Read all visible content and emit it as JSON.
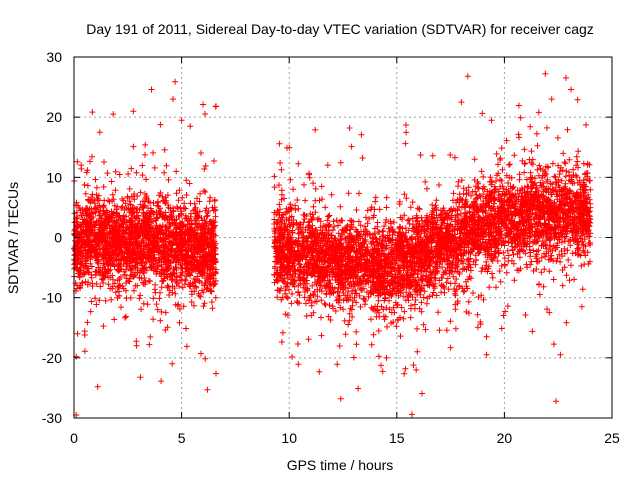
{
  "chart_data": {
    "type": "scatter",
    "title": "Day 191 of 2011, Sidereal Day-to-day VTEC variation (SDTVAR) for receiver cagz",
    "xlabel": "GPS time / hours",
    "ylabel": "SDTVAR / TECUs",
    "xlim": [
      0,
      25
    ],
    "ylim": [
      -30,
      30
    ],
    "xticks": [
      0,
      5,
      10,
      15,
      20,
      25
    ],
    "xtick_labels": [
      "0",
      "5",
      "10",
      "15",
      "20",
      "25"
    ],
    "yticks": [
      -30,
      -20,
      -10,
      0,
      10,
      20,
      30
    ],
    "ytick_labels": [
      "-30",
      "-20",
      "-10",
      "0",
      "10",
      "20",
      "30"
    ],
    "grid": true,
    "marker": "plus",
    "color": "#ff0000",
    "data_gap_hours": [
      6.6,
      9.3
    ],
    "series": [
      {
        "name": "SDTVAR",
        "segments": [
          {
            "x_range": [
              0.0,
              6.6
            ],
            "trend": [
              [
                0,
                -1
              ],
              [
                1,
                0
              ],
              [
                2,
                -1
              ],
              [
                3,
                0
              ],
              [
                4,
                -1
              ],
              [
                5,
                -1
              ],
              [
                6,
                -2
              ],
              [
                6.6,
                -2
              ]
            ],
            "spread": 3.5,
            "points": 2300
          },
          {
            "x_range": [
              9.3,
              24.0
            ],
            "trend": [
              [
                9.3,
                -2
              ],
              [
                11,
                -3
              ],
              [
                13,
                -4
              ],
              [
                14.5,
                -5
              ],
              [
                16,
                -3
              ],
              [
                17.5,
                -1
              ],
              [
                19,
                2
              ],
              [
                21,
                4
              ],
              [
                22.5,
                4
              ],
              [
                24,
                4
              ]
            ],
            "spread": 3.5,
            "points": 4600
          }
        ],
        "outliers": [
          [
            0.1,
            -29.5
          ],
          [
            0.1,
            -19.8
          ],
          [
            1.1,
            -24.8
          ],
          [
            3.6,
            24.6
          ],
          [
            3.5,
            -17.8
          ],
          [
            4.7,
            25.9
          ],
          [
            4.6,
            23.0
          ],
          [
            5.0,
            19.5
          ],
          [
            5.4,
            18.5
          ],
          [
            6.0,
            22.1
          ],
          [
            6.6,
            21.8
          ],
          [
            5.9,
            -19.3
          ],
          [
            6.2,
            -25.3
          ],
          [
            6.6,
            -22.6
          ],
          [
            1.2,
            17.5
          ],
          [
            0.5,
            -16.2
          ],
          [
            12.8,
            18.2
          ],
          [
            12.4,
            -26.8
          ],
          [
            13.2,
            -25.1
          ],
          [
            11.4,
            -22.3
          ],
          [
            11.5,
            -16.3
          ],
          [
            12.9,
            15.1
          ],
          [
            9.9,
            14.9
          ],
          [
            15.4,
            -21.8
          ],
          [
            15.7,
            -29.4
          ],
          [
            15.9,
            -22.0
          ],
          [
            15.4,
            15.6
          ],
          [
            17.5,
            -18.3
          ],
          [
            18.3,
            26.8
          ],
          [
            18.0,
            22.5
          ],
          [
            19.4,
            19.5
          ],
          [
            21.9,
            27.2
          ],
          [
            22.2,
            23.0
          ],
          [
            21.6,
            20.8
          ],
          [
            22.4,
            -27.2
          ],
          [
            22.6,
            -19.5
          ],
          [
            23.1,
            24.6
          ],
          [
            23.4,
            22.9
          ],
          [
            23.6,
            -11.5
          ],
          [
            21.3,
            -15.6
          ],
          [
            18.9,
            -14.4
          ],
          [
            20.1,
            16.1
          ]
        ]
      }
    ]
  }
}
